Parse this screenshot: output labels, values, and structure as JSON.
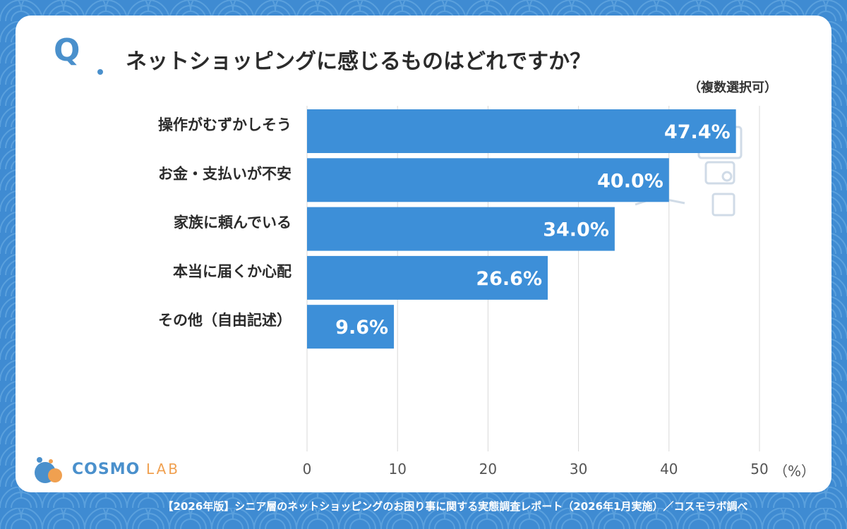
{
  "question": {
    "mark": "Q",
    "text": "ネットショッピングに感じるものはどれですか？",
    "note": "（複数選択可）"
  },
  "footer": "【2026年版】シニア層のネットショッピングのお困り事に関する実態調査レポート（2026年1月実施）／コスモラボ調べ",
  "logo": {
    "name": "COSMO",
    "sub": "LAB"
  },
  "colors": {
    "bar": "#3d8fd8",
    "background": "#3f8bd2",
    "accent": "#4a90cc",
    "grid": "#d8d8d8"
  },
  "chart_data": {
    "type": "bar",
    "orientation": "horizontal",
    "categories": [
      "操作がむずかしそう",
      "お金・支払いが不安",
      "家族に頼んでいる",
      "本当に届くか心配",
      "その他（自由記述）"
    ],
    "values": [
      47.4,
      40.0,
      34.0,
      26.6,
      9.6
    ],
    "value_labels": [
      "47.4%",
      "40.0%",
      "34.0%",
      "26.6%",
      "9.6%"
    ],
    "xlim": [
      0,
      50
    ],
    "xticks": [
      0,
      10,
      20,
      30,
      40,
      50
    ],
    "xunit": "（%）",
    "grid": true
  }
}
